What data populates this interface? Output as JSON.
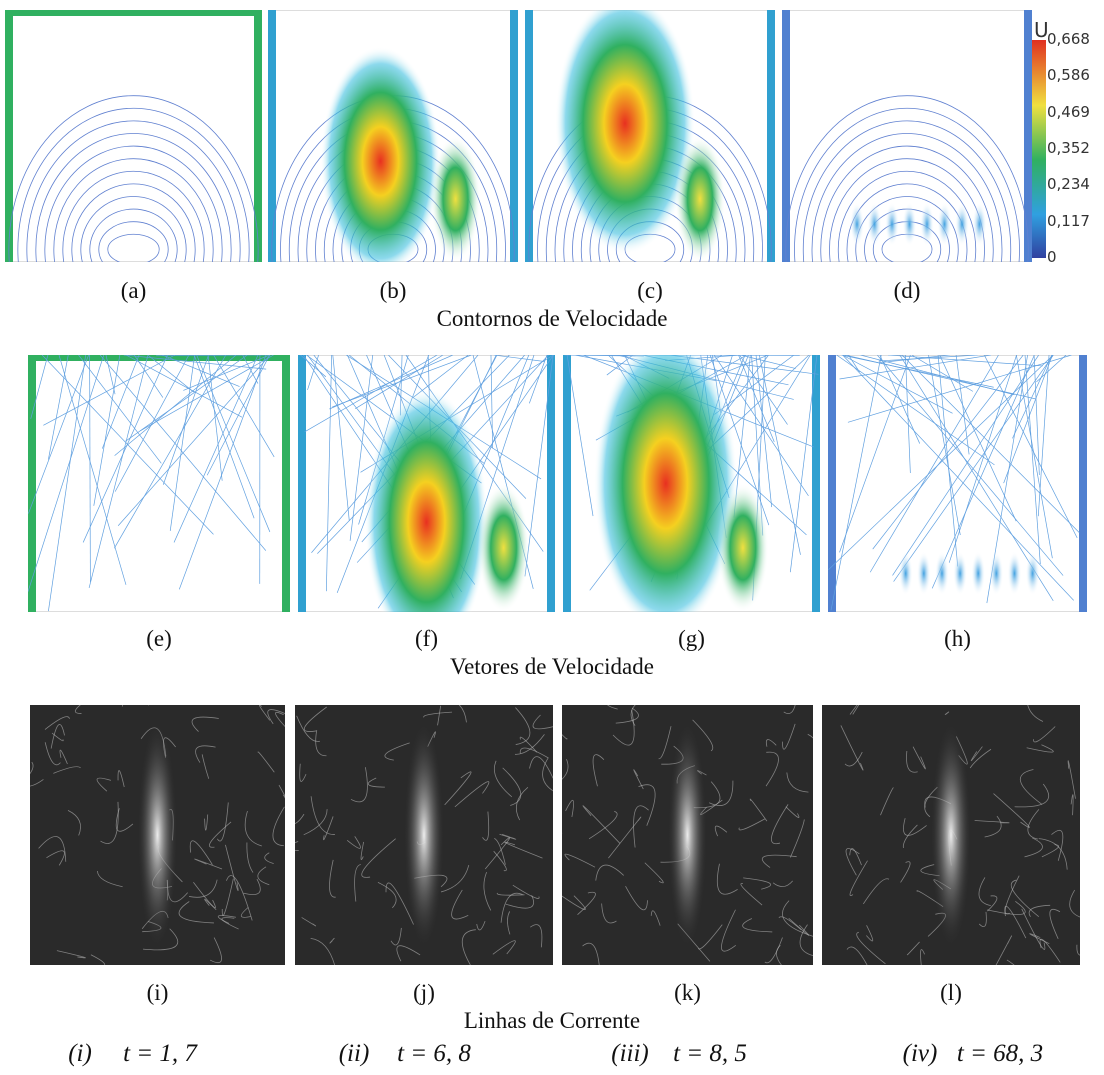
{
  "rows": [
    {
      "panels": [
        "(a)",
        "(b)",
        "(c)",
        "(d)"
      ],
      "caption": "Contornos de Velocidade"
    },
    {
      "panels": [
        "(e)",
        "(f)",
        "(g)",
        "(h)"
      ],
      "caption": "Vetores de Velocidade"
    },
    {
      "panels": [
        "(i)",
        "(j)",
        "(k)",
        "(l)"
      ],
      "caption": "Linhas de Corrente"
    }
  ],
  "colorbar": {
    "title": "U",
    "ticks": [
      "0,668",
      "0,586",
      "0,469",
      "0,352",
      "0,234",
      "0,117",
      "0"
    ]
  },
  "times": [
    {
      "label": "(i)",
      "expr": "t = 1, 7"
    },
    {
      "label": "(ii)",
      "expr": "t = 6, 8"
    },
    {
      "label": "(iii)",
      "expr": "t = 8, 5"
    },
    {
      "label": "(iv)",
      "expr": "t = 68, 3"
    }
  ]
}
